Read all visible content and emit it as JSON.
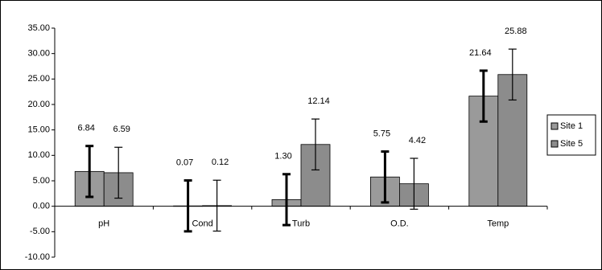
{
  "chart_data": {
    "type": "bar",
    "categories": [
      "pH",
      "Cond",
      "Turb",
      "O.D.",
      "Temp"
    ],
    "series": [
      {
        "name": "Site 1",
        "color": "#9a9a9a",
        "values": [
          6.84,
          0.07,
          1.3,
          5.75,
          21.64
        ],
        "value_labels": [
          "6.84",
          "0.07",
          "1.30",
          "5.75",
          "21.64"
        ],
        "errors": [
          5,
          5,
          5,
          5,
          5
        ]
      },
      {
        "name": "Site 5",
        "color": "#8c8c8c",
        "values": [
          6.59,
          0.12,
          12.14,
          4.42,
          25.88
        ],
        "value_labels": [
          "6.59",
          "0.12",
          "12.14",
          "4.42",
          "25.88"
        ],
        "errors": [
          5,
          5,
          5,
          5,
          5
        ]
      }
    ],
    "ylim": [
      -10,
      35
    ],
    "yticks": [
      {
        "value": -10,
        "label": "-10.00"
      },
      {
        "value": -5,
        "label": "-5.00"
      },
      {
        "value": 0,
        "label": "0.00"
      },
      {
        "value": 5,
        "label": "5.00"
      },
      {
        "value": 10,
        "label": "10.00"
      },
      {
        "value": 15,
        "label": "15.00"
      },
      {
        "value": 20,
        "label": "20.00"
      },
      {
        "value": 25,
        "label": "25.00"
      },
      {
        "value": 30,
        "label": "30.00"
      },
      {
        "value": 35,
        "label": "35.00"
      }
    ],
    "legend": "right"
  }
}
